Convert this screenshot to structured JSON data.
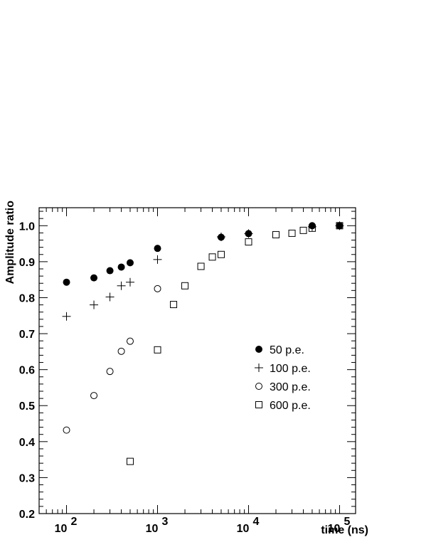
{
  "chart_data": {
    "type": "scatter",
    "title": "",
    "xlabel": "time (ns)",
    "ylabel": "Amplitude ratio",
    "xscale": "log",
    "xlim": [
      50,
      150000
    ],
    "ylim": [
      0.2,
      1.05
    ],
    "x_tick_labels": [
      {
        "base": "10",
        "exp": "2",
        "value": 100
      },
      {
        "base": "10",
        "exp": "3",
        "value": 1000
      },
      {
        "base": "10",
        "exp": "4",
        "value": 10000
      },
      {
        "base": "10",
        "exp": "5",
        "value": 100000
      }
    ],
    "y_ticks": [
      "0.2",
      "0.3",
      "0.4",
      "0.5",
      "0.6",
      "0.7",
      "0.8",
      "0.9",
      "1.0"
    ],
    "legend_position": "right-middle",
    "grid": false,
    "series": [
      {
        "name": "50 p.e.",
        "marker": "filled-circle",
        "points": [
          [
            100,
            0.843
          ],
          [
            200,
            0.855
          ],
          [
            300,
            0.875
          ],
          [
            400,
            0.885
          ],
          [
            500,
            0.897
          ],
          [
            1000,
            0.937
          ],
          [
            5000,
            0.968
          ],
          [
            10000,
            0.978
          ],
          [
            50000,
            1.0
          ],
          [
            100000,
            1.0
          ]
        ]
      },
      {
        "name": "100 p.e.",
        "marker": "plus",
        "points": [
          [
            100,
            0.748
          ],
          [
            200,
            0.78
          ],
          [
            300,
            0.802
          ],
          [
            400,
            0.833
          ],
          [
            500,
            0.843
          ],
          [
            1000,
            0.906
          ],
          [
            5000,
            0.969
          ],
          [
            10000,
            0.978
          ],
          [
            50000,
            0.997
          ],
          [
            100000,
            1.0
          ]
        ]
      },
      {
        "name": "300 p.e.",
        "marker": "open-circle",
        "points": [
          [
            100,
            0.432
          ],
          [
            200,
            0.528
          ],
          [
            300,
            0.595
          ],
          [
            400,
            0.651
          ],
          [
            500,
            0.679
          ],
          [
            1000,
            0.825
          ]
        ]
      },
      {
        "name": "600 p.e.",
        "marker": "open-square",
        "points": [
          [
            500,
            0.345
          ],
          [
            1000,
            0.655
          ],
          [
            1500,
            0.781
          ],
          [
            2000,
            0.833
          ],
          [
            3000,
            0.887
          ],
          [
            4000,
            0.913
          ],
          [
            5000,
            0.92
          ],
          [
            10000,
            0.955
          ],
          [
            20000,
            0.975
          ],
          [
            30000,
            0.979
          ],
          [
            40000,
            0.987
          ],
          [
            50000,
            0.993
          ],
          [
            100000,
            1.0
          ]
        ]
      }
    ]
  }
}
